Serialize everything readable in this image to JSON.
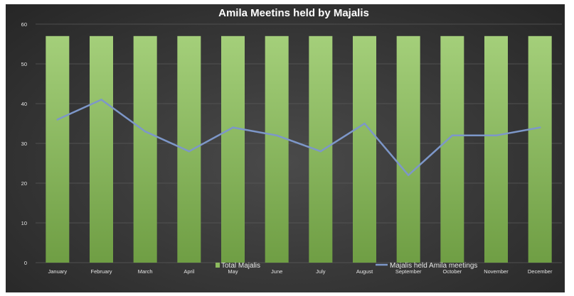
{
  "chart_data": {
    "type": "bar",
    "title": "Amila Meetins held by Majalis",
    "xlabel": "",
    "ylabel": "",
    "categories": [
      "January",
      "February",
      "March",
      "April",
      "May",
      "June",
      "July",
      "August",
      "September",
      "October",
      "November",
      "December"
    ],
    "ylim": [
      0,
      60
    ],
    "yticks": [
      0,
      10,
      20,
      30,
      40,
      50,
      60
    ],
    "series": [
      {
        "name": "Total Majalis",
        "type": "bar",
        "color": "#8dbb5e",
        "values": [
          57,
          57,
          57,
          57,
          57,
          57,
          57,
          57,
          57,
          57,
          57,
          57
        ]
      },
      {
        "name": "Majalis held Amila meetings",
        "type": "line",
        "color": "#7d97c9",
        "values": [
          36,
          41,
          33,
          28,
          34,
          32,
          28,
          35,
          22,
          32,
          32,
          34
        ]
      }
    ],
    "grid": true,
    "legend_position": "bottom"
  }
}
